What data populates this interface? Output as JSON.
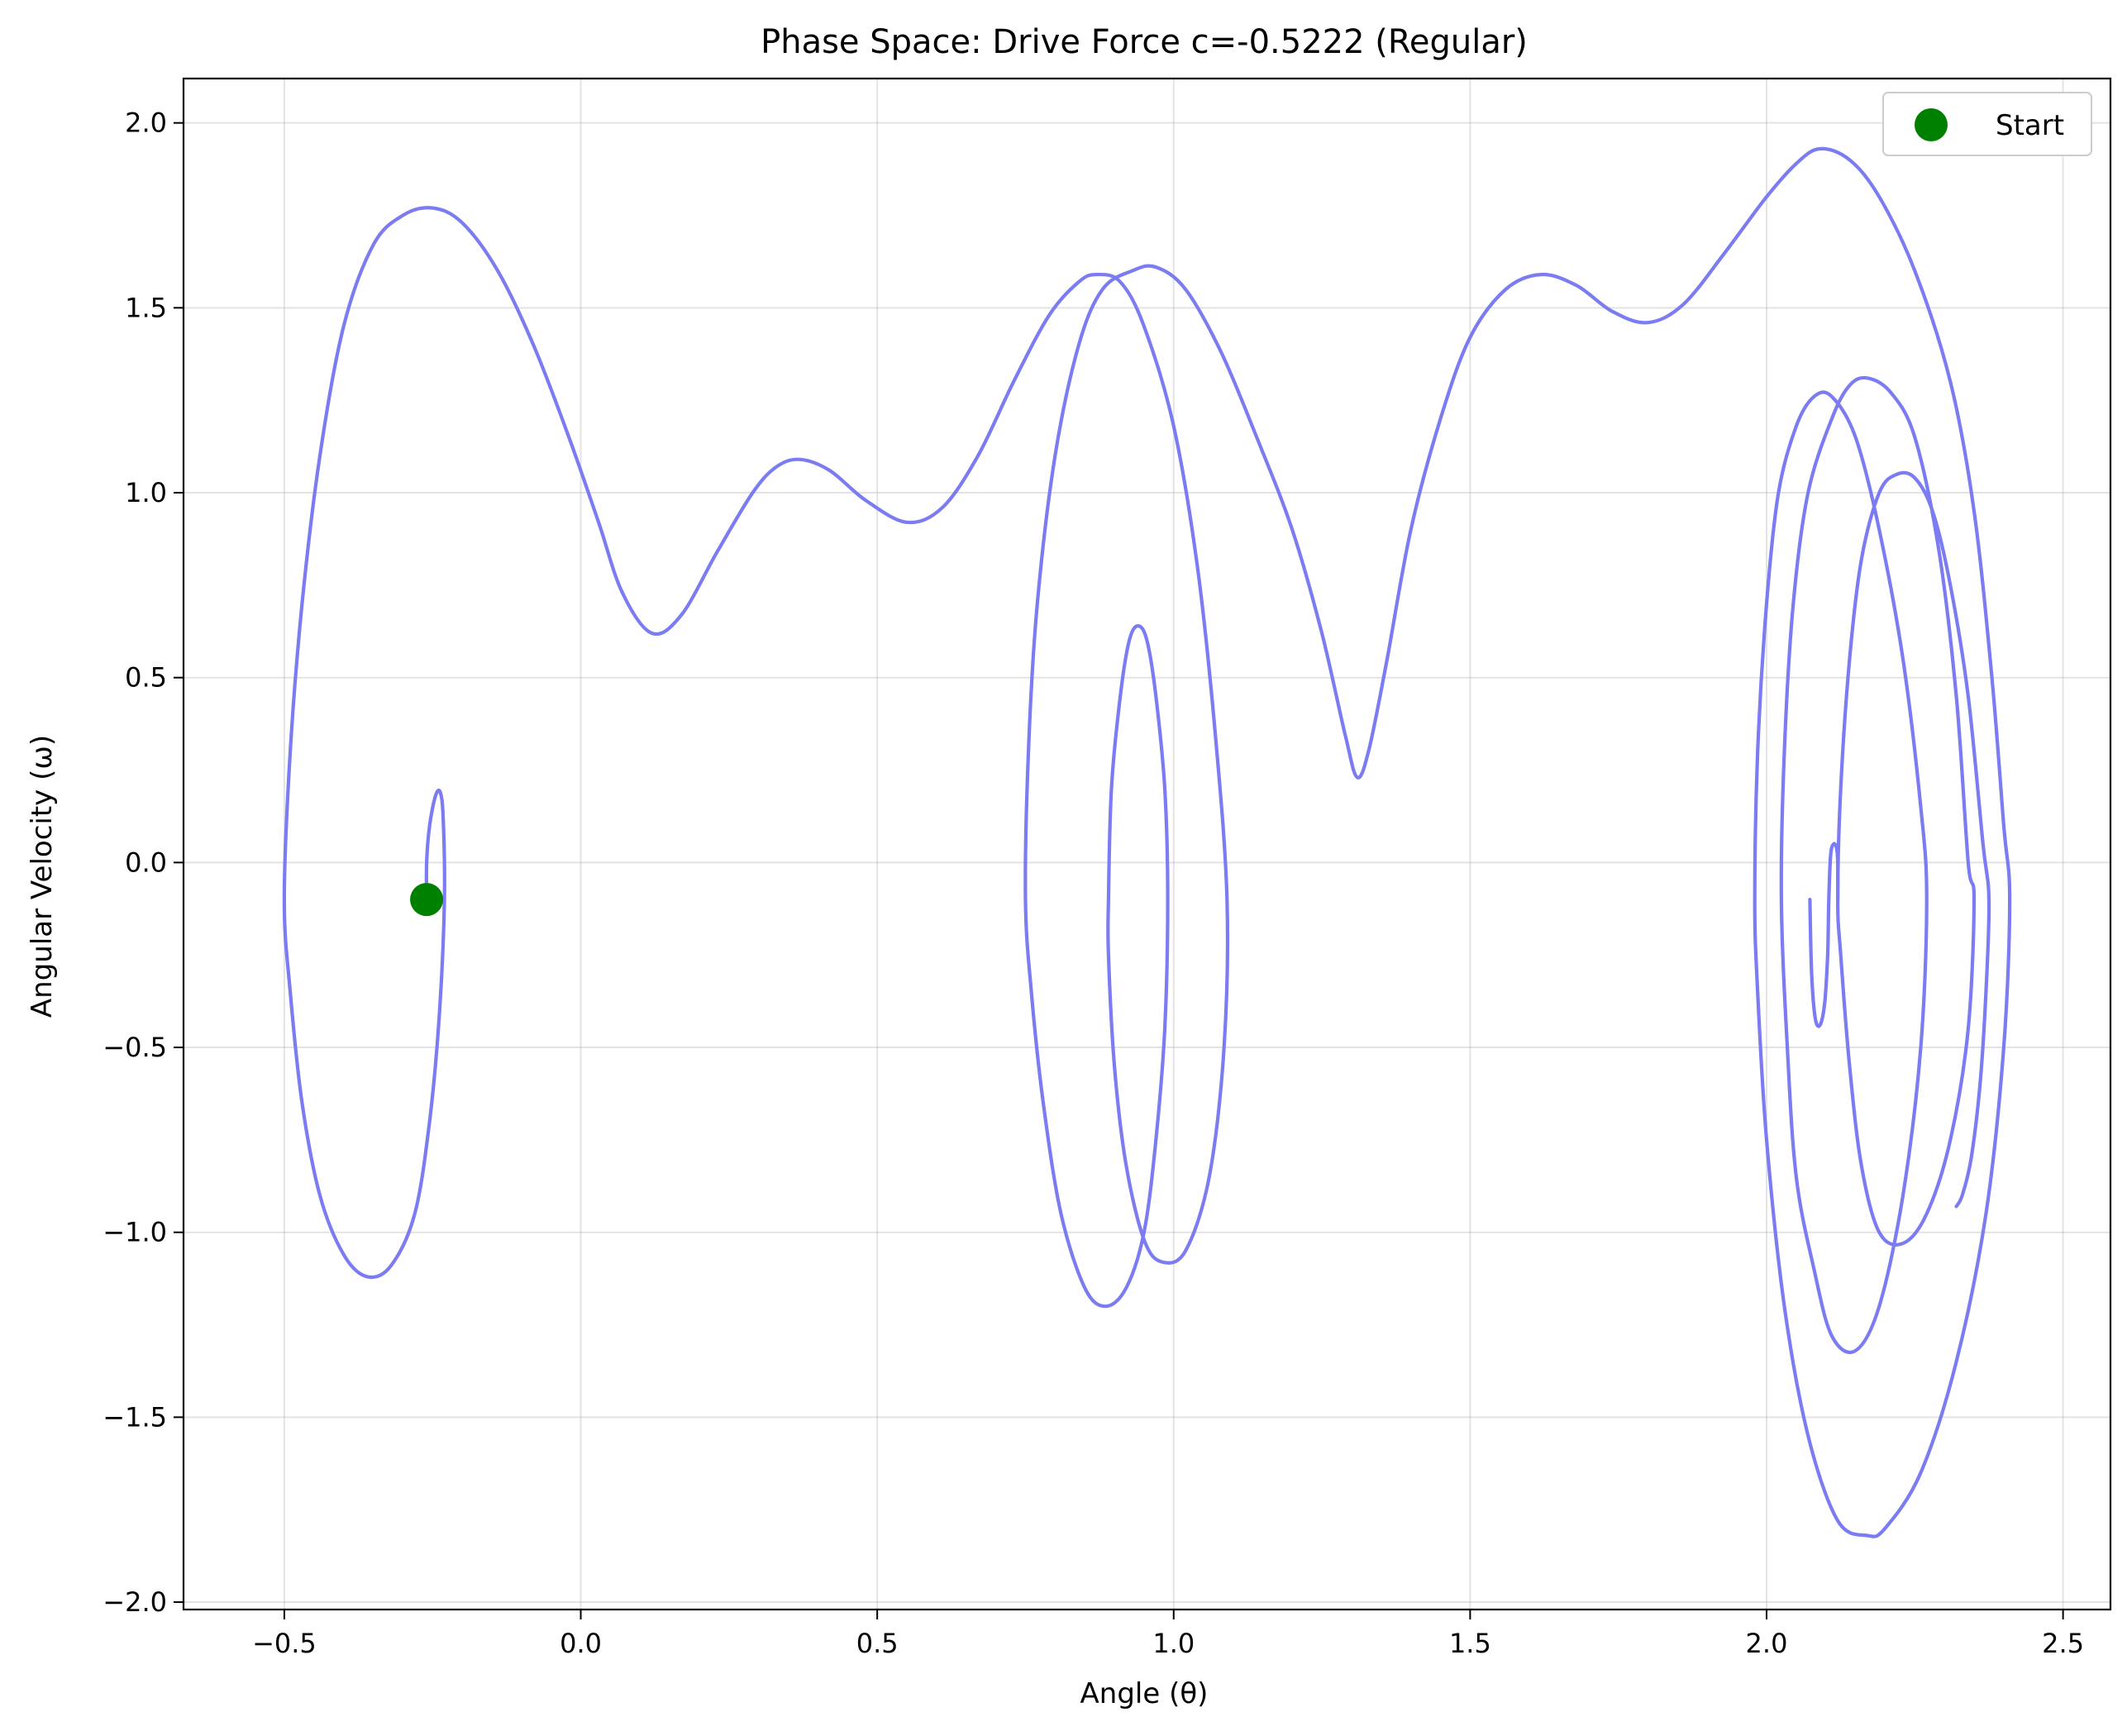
{
  "chart_data": {
    "type": "line",
    "title": "Phase Space: Drive Force c=-0.5222 (Regular)",
    "xlabel": "Angle (θ)",
    "ylabel": "Angular Velocity (ω)",
    "xlim": [
      -0.67,
      2.58
    ],
    "ylim": [
      -2.02,
      2.12
    ],
    "xticks": [
      -0.5,
      0.0,
      0.5,
      1.0,
      1.5,
      2.0,
      2.5
    ],
    "yticks": [
      -2.0,
      -1.5,
      -1.0,
      -0.5,
      0.0,
      0.5,
      1.0,
      1.5,
      2.0
    ],
    "xtick_labels": [
      "−0.5",
      "0.0",
      "0.5",
      "1.0",
      "1.5",
      "2.0",
      "2.5"
    ],
    "ytick_labels": [
      "−2.0",
      "−1.5",
      "−1.0",
      "−0.5",
      "0.0",
      "0.5",
      "1.0",
      "1.5",
      "2.0"
    ],
    "grid": true,
    "legend_position": "top-right",
    "series": [
      {
        "name": "",
        "color": "#7b7bf2",
        "points": [
          [
            -0.26,
            -0.1
          ],
          [
            -0.26,
            0.0
          ],
          [
            -0.255,
            0.1
          ],
          [
            -0.245,
            0.18
          ],
          [
            -0.237,
            0.19
          ],
          [
            -0.232,
            0.12
          ],
          [
            -0.23,
            -0.1
          ],
          [
            -0.238,
            -0.4
          ],
          [
            -0.255,
            -0.7
          ],
          [
            -0.28,
            -0.95
          ],
          [
            -0.32,
            -1.09
          ],
          [
            -0.36,
            -1.12
          ],
          [
            -0.4,
            -1.06
          ],
          [
            -0.44,
            -0.9
          ],
          [
            -0.47,
            -0.65
          ],
          [
            -0.49,
            -0.35
          ],
          [
            -0.5,
            -0.1
          ],
          [
            -0.49,
            0.3
          ],
          [
            -0.47,
            0.7
          ],
          [
            -0.44,
            1.1
          ],
          [
            -0.4,
            1.45
          ],
          [
            -0.35,
            1.67
          ],
          [
            -0.3,
            1.75
          ],
          [
            -0.25,
            1.77
          ],
          [
            -0.2,
            1.73
          ],
          [
            -0.14,
            1.6
          ],
          [
            -0.08,
            1.4
          ],
          [
            -0.02,
            1.15
          ],
          [
            0.03,
            0.92
          ],
          [
            0.07,
            0.73
          ],
          [
            0.12,
            0.62
          ],
          [
            0.17,
            0.67
          ],
          [
            0.23,
            0.84
          ],
          [
            0.29,
            1.0
          ],
          [
            0.33,
            1.07
          ],
          [
            0.37,
            1.09
          ],
          [
            0.42,
            1.06
          ],
          [
            0.48,
            0.98
          ],
          [
            0.55,
            0.92
          ],
          [
            0.61,
            0.96
          ],
          [
            0.67,
            1.1
          ],
          [
            0.73,
            1.3
          ],
          [
            0.79,
            1.48
          ],
          [
            0.84,
            1.57
          ],
          [
            0.87,
            1.59
          ],
          [
            0.91,
            1.57
          ],
          [
            0.95,
            1.45
          ],
          [
            1.0,
            1.18
          ],
          [
            1.04,
            0.8
          ],
          [
            1.07,
            0.35
          ],
          [
            1.09,
            -0.1
          ],
          [
            1.085,
            -0.5
          ],
          [
            1.06,
            -0.85
          ],
          [
            1.02,
            -1.05
          ],
          [
            0.98,
            -1.08
          ],
          [
            0.95,
            -1.02
          ],
          [
            0.92,
            -0.82
          ],
          [
            0.9,
            -0.55
          ],
          [
            0.89,
            -0.25
          ],
          [
            0.89,
            -0.1
          ],
          [
            0.895,
            0.2
          ],
          [
            0.91,
            0.45
          ],
          [
            0.925,
            0.6
          ],
          [
            0.94,
            0.64
          ],
          [
            0.955,
            0.6
          ],
          [
            0.97,
            0.45
          ],
          [
            0.985,
            0.2
          ],
          [
            0.99,
            -0.1
          ],
          [
            0.985,
            -0.45
          ],
          [
            0.97,
            -0.75
          ],
          [
            0.95,
            -1.0
          ],
          [
            0.92,
            -1.15
          ],
          [
            0.885,
            -1.2
          ],
          [
            0.85,
            -1.15
          ],
          [
            0.81,
            -0.95
          ],
          [
            0.78,
            -0.65
          ],
          [
            0.76,
            -0.35
          ],
          [
            0.75,
            -0.1
          ],
          [
            0.755,
            0.3
          ],
          [
            0.77,
            0.7
          ],
          [
            0.8,
            1.1
          ],
          [
            0.84,
            1.4
          ],
          [
            0.88,
            1.55
          ],
          [
            0.93,
            1.6
          ],
          [
            0.97,
            1.61
          ],
          [
            1.02,
            1.55
          ],
          [
            1.08,
            1.38
          ],
          [
            1.14,
            1.15
          ],
          [
            1.2,
            0.9
          ],
          [
            1.25,
            0.62
          ],
          [
            1.29,
            0.34
          ],
          [
            1.31,
            0.23
          ],
          [
            1.33,
            0.31
          ],
          [
            1.36,
            0.55
          ],
          [
            1.4,
            0.9
          ],
          [
            1.45,
            1.2
          ],
          [
            1.5,
            1.42
          ],
          [
            1.56,
            1.55
          ],
          [
            1.62,
            1.59
          ],
          [
            1.68,
            1.56
          ],
          [
            1.74,
            1.49
          ],
          [
            1.8,
            1.46
          ],
          [
            1.86,
            1.51
          ],
          [
            1.93,
            1.65
          ],
          [
            2.0,
            1.8
          ],
          [
            2.05,
            1.89
          ],
          [
            2.09,
            1.93
          ],
          [
            2.14,
            1.9
          ],
          [
            2.19,
            1.8
          ],
          [
            2.25,
            1.6
          ],
          [
            2.31,
            1.3
          ],
          [
            2.35,
            0.95
          ],
          [
            2.38,
            0.5
          ],
          [
            2.4,
            0.1
          ],
          [
            2.41,
            -0.1
          ],
          [
            2.4,
            -0.5
          ],
          [
            2.37,
            -0.95
          ],
          [
            2.32,
            -1.35
          ],
          [
            2.26,
            -1.65
          ],
          [
            2.2,
            -1.8
          ],
          [
            2.17,
            -1.82
          ],
          [
            2.12,
            -1.78
          ],
          [
            2.07,
            -1.55
          ],
          [
            2.03,
            -1.2
          ],
          [
            2.0,
            -0.75
          ],
          [
            1.985,
            -0.35
          ],
          [
            1.98,
            -0.1
          ],
          [
            1.985,
            0.3
          ],
          [
            2.0,
            0.7
          ],
          [
            2.02,
            1.0
          ],
          [
            2.05,
            1.18
          ],
          [
            2.08,
            1.26
          ],
          [
            2.11,
            1.26
          ],
          [
            2.15,
            1.15
          ],
          [
            2.19,
            0.9
          ],
          [
            2.23,
            0.55
          ],
          [
            2.26,
            0.15
          ],
          [
            2.27,
            -0.1
          ],
          [
            2.26,
            -0.5
          ],
          [
            2.23,
            -0.9
          ],
          [
            2.19,
            -1.2
          ],
          [
            2.15,
            -1.32
          ],
          [
            2.11,
            -1.28
          ],
          [
            2.08,
            -1.1
          ],
          [
            2.05,
            -0.85
          ],
          [
            2.035,
            -0.5
          ],
          [
            2.025,
            -0.1
          ],
          [
            2.03,
            0.3
          ],
          [
            2.045,
            0.7
          ],
          [
            2.07,
            1.0
          ],
          [
            2.11,
            1.2
          ],
          [
            2.14,
            1.29
          ],
          [
            2.17,
            1.31
          ],
          [
            2.21,
            1.27
          ],
          [
            2.25,
            1.15
          ],
          [
            2.29,
            0.85
          ],
          [
            2.32,
            0.45
          ],
          [
            2.34,
            0.0
          ],
          [
            2.35,
            -0.1
          ],
          [
            2.34,
            -0.45
          ],
          [
            2.31,
            -0.75
          ],
          [
            2.27,
            -0.95
          ],
          [
            2.23,
            -1.03
          ],
          [
            2.19,
            -1.0
          ],
          [
            2.16,
            -0.82
          ],
          [
            2.14,
            -0.55
          ],
          [
            2.125,
            -0.25
          ],
          [
            2.12,
            -0.1
          ],
          [
            2.125,
            0.2
          ],
          [
            2.14,
            0.55
          ],
          [
            2.16,
            0.82
          ],
          [
            2.19,
            1.0
          ],
          [
            2.22,
            1.05
          ],
          [
            2.25,
            1.04
          ],
          [
            2.28,
            0.95
          ],
          [
            2.31,
            0.75
          ],
          [
            2.34,
            0.45
          ],
          [
            2.365,
            0.05
          ],
          [
            2.375,
            -0.1
          ],
          [
            2.37,
            -0.35
          ],
          [
            2.36,
            -0.6
          ],
          [
            2.345,
            -0.8
          ],
          [
            2.33,
            -0.9
          ],
          [
            2.32,
            -0.93
          ]
        ]
      }
    ],
    "inner_spiral": {
      "color": "#7b7bf2",
      "points": [
        [
          2.12,
          -0.1
        ],
        [
          2.12,
          0.0
        ],
        [
          2.118,
          0.04
        ],
        [
          2.113,
          0.05
        ],
        [
          2.108,
          0.02
        ],
        [
          2.105,
          -0.1
        ],
        [
          2.103,
          -0.25
        ],
        [
          2.098,
          -0.38
        ],
        [
          2.09,
          -0.44
        ],
        [
          2.082,
          -0.42
        ],
        [
          2.076,
          -0.3
        ],
        [
          2.073,
          -0.1
        ]
      ]
    },
    "start_point": {
      "label": "Start",
      "x": -0.26,
      "y": -0.1,
      "color": "#008000"
    }
  }
}
